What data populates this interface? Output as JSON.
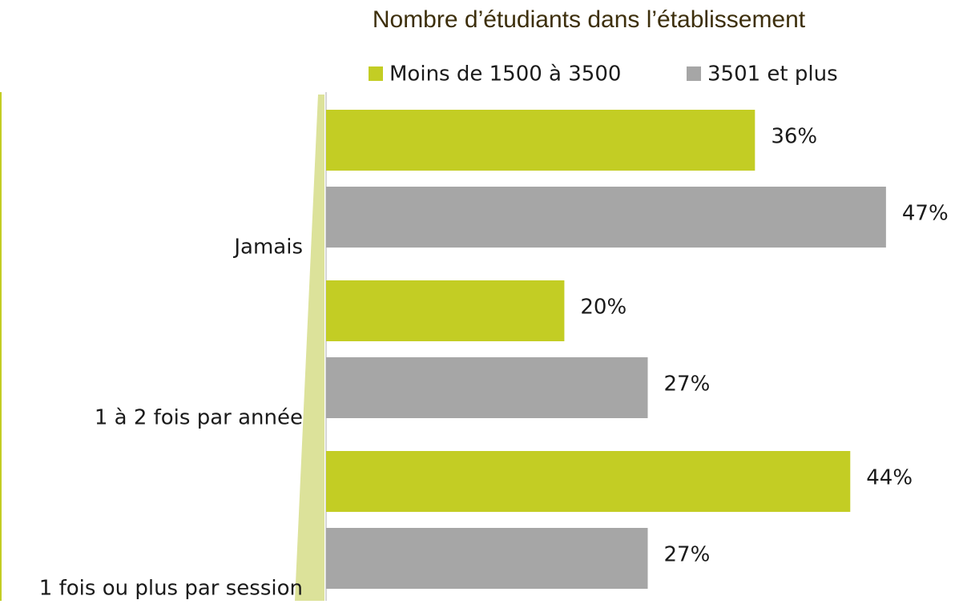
{
  "chart_data": {
    "type": "barh",
    "title": "Nombre d’étudiants dans l’établissement",
    "categories": [
      "Jamais",
      "1 à 2 fois par année",
      "1 fois ou plus par session"
    ],
    "series": [
      {
        "name": "Moins de 1500 à 3500",
        "color": "#c3cd24",
        "values": [
          36,
          20,
          44
        ],
        "value_labels": [
          "36%",
          "20%",
          "44%"
        ]
      },
      {
        "name": "3501 et plus",
        "color": "#a6a6a6",
        "values": [
          47,
          27,
          27
        ],
        "value_labels": [
          "47%",
          "27%",
          "27%"
        ]
      }
    ],
    "legend": "top"
  }
}
